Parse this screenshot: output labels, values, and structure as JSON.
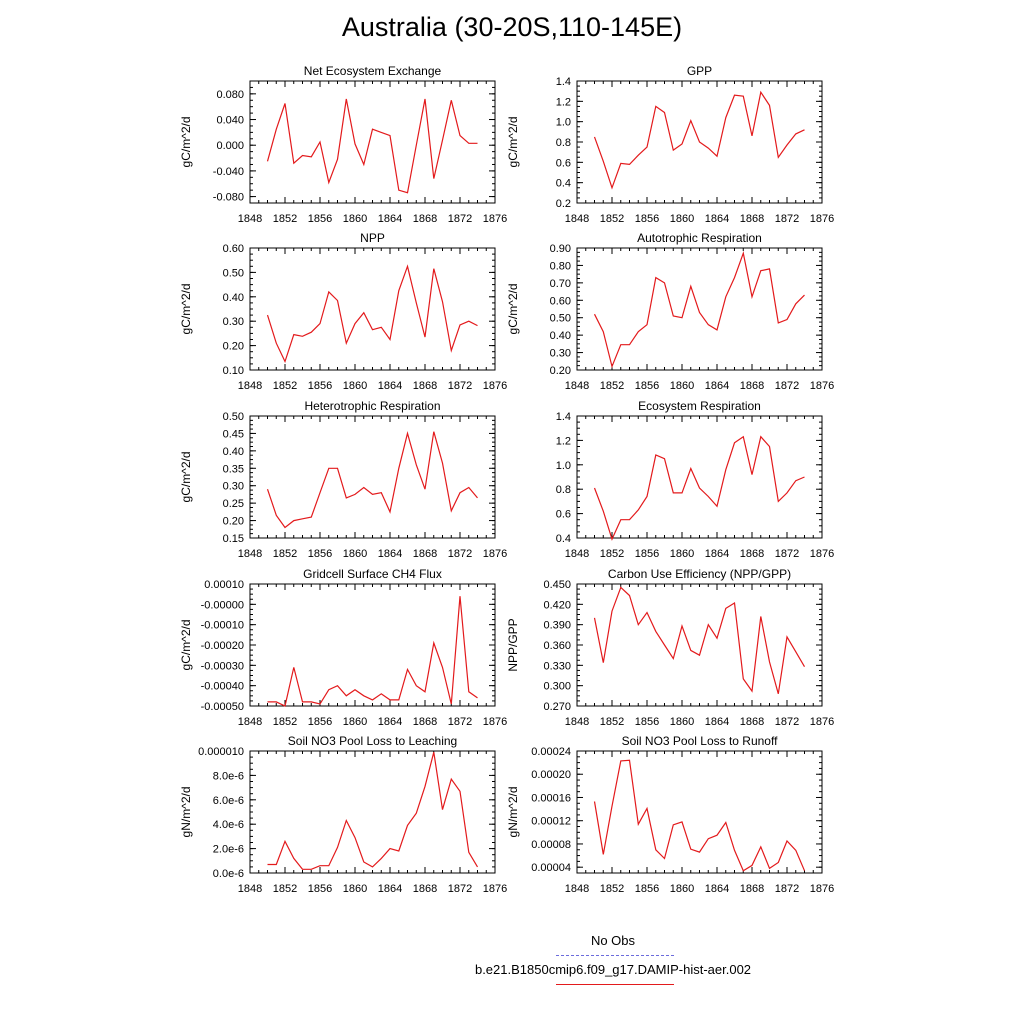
{
  "title": "Australia (30-20S,110-145E)",
  "colors": {
    "series": "#e31a1c",
    "obs": "#6b6bdc",
    "axis": "#000000"
  },
  "legend": {
    "entries": [
      {
        "label": "No Obs",
        "style": "dashed",
        "color": "#6b6bdc"
      },
      {
        "label": "b.e21.B1850cmip6.f09_g17.DAMIP-hist-aer.002",
        "style": "solid",
        "color": "#e31a1c"
      }
    ]
  },
  "chart_data": [
    {
      "type": "line",
      "title": "Net Ecosystem Exchange",
      "ylabel": "gC/m^2/d",
      "xlabel": "",
      "xlim": [
        1848,
        1876
      ],
      "ylim": [
        -0.09,
        0.1
      ],
      "xticks": [
        "1848",
        "1852",
        "1856",
        "1860",
        "1864",
        "1868",
        "1872",
        "1876"
      ],
      "yticks": [
        -0.08,
        -0.04,
        0.0,
        0.04,
        0.08
      ],
      "ytick_labels": [
        "-0.080",
        "-0.040",
        "0.000",
        "0.040",
        "0.080"
      ],
      "series": [
        {
          "x": [
            1850,
            1851,
            1852,
            1853,
            1854,
            1855,
            1856,
            1857,
            1858,
            1859,
            1860,
            1861,
            1862,
            1863,
            1864,
            1865,
            1866,
            1867,
            1868,
            1869,
            1870,
            1871,
            1872,
            1873,
            1874
          ],
          "y": [
            -0.025,
            0.025,
            0.065,
            -0.028,
            -0.016,
            -0.018,
            0.005,
            -0.058,
            -0.022,
            0.072,
            0.002,
            -0.03,
            0.025,
            0.02,
            0.015,
            -0.07,
            -0.074,
            0.0,
            0.072,
            -0.052,
            0.008,
            0.07,
            0.015,
            0.003,
            0.003
          ]
        }
      ]
    },
    {
      "type": "line",
      "title": "GPP",
      "ylabel": "gC/m^2/d",
      "xlabel": "",
      "xlim": [
        1848,
        1876
      ],
      "ylim": [
        0.2,
        1.4
      ],
      "xticks": [
        "1848",
        "1852",
        "1856",
        "1860",
        "1864",
        "1868",
        "1872",
        "1876"
      ],
      "yticks": [
        0.2,
        0.4,
        0.6,
        0.8,
        1.0,
        1.2,
        1.4
      ],
      "ytick_labels": [
        "0.2",
        "0.4",
        "0.6",
        "0.8",
        "1.0",
        "1.2",
        "1.4"
      ],
      "series": [
        {
          "x": [
            1850,
            1851,
            1852,
            1853,
            1854,
            1855,
            1856,
            1857,
            1858,
            1859,
            1860,
            1861,
            1862,
            1863,
            1864,
            1865,
            1866,
            1867,
            1868,
            1869,
            1870,
            1871,
            1872,
            1873,
            1874
          ],
          "y": [
            0.85,
            0.61,
            0.35,
            0.59,
            0.58,
            0.67,
            0.75,
            1.15,
            1.09,
            0.72,
            0.78,
            1.01,
            0.8,
            0.74,
            0.66,
            1.04,
            1.26,
            1.25,
            0.86,
            1.29,
            1.16,
            0.65,
            0.77,
            0.88,
            0.92
          ]
        }
      ]
    },
    {
      "type": "line",
      "title": "NPP",
      "ylabel": "gC/m^2/d",
      "xlabel": "",
      "xlim": [
        1848,
        1876
      ],
      "ylim": [
        0.1,
        0.6
      ],
      "xticks": [
        "1848",
        "1852",
        "1856",
        "1860",
        "1864",
        "1868",
        "1872",
        "1876"
      ],
      "yticks": [
        0.1,
        0.2,
        0.3,
        0.4,
        0.5,
        0.6
      ],
      "ytick_labels": [
        "0.10",
        "0.20",
        "0.30",
        "0.40",
        "0.50",
        "0.60"
      ],
      "series": [
        {
          "x": [
            1850,
            1851,
            1852,
            1853,
            1854,
            1855,
            1856,
            1857,
            1858,
            1859,
            1860,
            1861,
            1862,
            1863,
            1864,
            1865,
            1866,
            1867,
            1868,
            1869,
            1870,
            1871,
            1872,
            1873,
            1874
          ],
          "y": [
            0.325,
            0.21,
            0.135,
            0.245,
            0.238,
            0.255,
            0.29,
            0.42,
            0.385,
            0.21,
            0.29,
            0.335,
            0.265,
            0.275,
            0.225,
            0.425,
            0.525,
            0.375,
            0.235,
            0.515,
            0.38,
            0.18,
            0.285,
            0.3,
            0.282
          ]
        }
      ]
    },
    {
      "type": "line",
      "title": "Autotrophic Respiration",
      "ylabel": "gC/m^2/d",
      "xlabel": "",
      "xlim": [
        1848,
        1876
      ],
      "ylim": [
        0.2,
        0.9
      ],
      "xticks": [
        "1848",
        "1852",
        "1856",
        "1860",
        "1864",
        "1868",
        "1872",
        "1876"
      ],
      "yticks": [
        0.2,
        0.3,
        0.4,
        0.5,
        0.6,
        0.7,
        0.8,
        0.9
      ],
      "ytick_labels": [
        "0.20",
        "0.30",
        "0.40",
        "0.50",
        "0.60",
        "0.70",
        "0.80",
        "0.90"
      ],
      "series": [
        {
          "x": [
            1850,
            1851,
            1852,
            1853,
            1854,
            1855,
            1856,
            1857,
            1858,
            1859,
            1860,
            1861,
            1862,
            1863,
            1864,
            1865,
            1866,
            1867,
            1868,
            1869,
            1870,
            1871,
            1872,
            1873,
            1874
          ],
          "y": [
            0.52,
            0.42,
            0.22,
            0.345,
            0.345,
            0.42,
            0.46,
            0.73,
            0.7,
            0.51,
            0.5,
            0.68,
            0.53,
            0.46,
            0.43,
            0.62,
            0.73,
            0.87,
            0.62,
            0.77,
            0.78,
            0.47,
            0.49,
            0.58,
            0.63
          ]
        }
      ]
    },
    {
      "type": "line",
      "title": "Heterotrophic Respiration",
      "ylabel": "gC/m^2/d",
      "xlabel": "",
      "xlim": [
        1848,
        1876
      ],
      "ylim": [
        0.15,
        0.5
      ],
      "xticks": [
        "1848",
        "1852",
        "1856",
        "1860",
        "1864",
        "1868",
        "1872",
        "1876"
      ],
      "yticks": [
        0.15,
        0.2,
        0.25,
        0.3,
        0.35,
        0.4,
        0.45,
        0.5
      ],
      "ytick_labels": [
        "0.15",
        "0.20",
        "0.25",
        "0.30",
        "0.35",
        "0.40",
        "0.45",
        "0.50"
      ],
      "series": [
        {
          "x": [
            1850,
            1851,
            1852,
            1853,
            1854,
            1855,
            1856,
            1857,
            1858,
            1859,
            1860,
            1861,
            1862,
            1863,
            1864,
            1865,
            1866,
            1867,
            1868,
            1869,
            1870,
            1871,
            1872,
            1873,
            1874
          ],
          "y": [
            0.29,
            0.215,
            0.18,
            0.2,
            0.205,
            0.21,
            0.28,
            0.35,
            0.35,
            0.265,
            0.275,
            0.295,
            0.275,
            0.28,
            0.225,
            0.35,
            0.45,
            0.36,
            0.29,
            0.455,
            0.365,
            0.228,
            0.28,
            0.295,
            0.265
          ]
        }
      ]
    },
    {
      "type": "line",
      "title": "Ecosystem Respiration",
      "ylabel": "",
      "xlabel": "",
      "xlim": [
        1848,
        1876
      ],
      "ylim": [
        0.4,
        1.4
      ],
      "xticks": [
        "1848",
        "1852",
        "1856",
        "1860",
        "1864",
        "1868",
        "1872",
        "1876"
      ],
      "yticks": [
        0.4,
        0.6,
        0.8,
        1.0,
        1.2,
        1.4
      ],
      "ytick_labels": [
        "0.4",
        "0.6",
        "0.8",
        "1.0",
        "1.2",
        "1.4"
      ],
      "series": [
        {
          "x": [
            1850,
            1851,
            1852,
            1853,
            1854,
            1855,
            1856,
            1857,
            1858,
            1859,
            1860,
            1861,
            1862,
            1863,
            1864,
            1865,
            1866,
            1867,
            1868,
            1869,
            1870,
            1871,
            1872,
            1873,
            1874
          ],
          "y": [
            0.81,
            0.62,
            0.39,
            0.55,
            0.55,
            0.63,
            0.74,
            1.08,
            1.05,
            0.77,
            0.77,
            0.97,
            0.81,
            0.74,
            0.66,
            0.96,
            1.18,
            1.23,
            0.92,
            1.23,
            1.15,
            0.7,
            0.77,
            0.87,
            0.9
          ]
        }
      ]
    },
    {
      "type": "line",
      "title": "Gridcell Surface CH4 Flux",
      "ylabel": "gC/m^2/d",
      "xlabel": "",
      "xlim": [
        1848,
        1876
      ],
      "ylim": [
        -0.0005,
        0.0001
      ],
      "xticks": [
        "1848",
        "1852",
        "1856",
        "1860",
        "1864",
        "1868",
        "1872",
        "1876"
      ],
      "yticks": [
        -0.0005,
        -0.0004,
        -0.0003,
        -0.0002,
        -0.0001,
        0.0,
        0.0001
      ],
      "ytick_labels": [
        "-0.00050",
        "-0.00040",
        "-0.00030",
        "-0.00020",
        "-0.00010",
        "-0.00000",
        "0.00010"
      ],
      "series": [
        {
          "x": [
            1850,
            1851,
            1852,
            1853,
            1854,
            1855,
            1856,
            1857,
            1858,
            1859,
            1860,
            1861,
            1862,
            1863,
            1864,
            1865,
            1866,
            1867,
            1868,
            1869,
            1870,
            1871,
            1872,
            1873,
            1874
          ],
          "y": [
            -0.00048,
            -0.00048,
            -0.0005,
            -0.00031,
            -0.00048,
            -0.00048,
            -0.00049,
            -0.00042,
            -0.0004,
            -0.00045,
            -0.00042,
            -0.00045,
            -0.00047,
            -0.00044,
            -0.00047,
            -0.00047,
            -0.00032,
            -0.0004,
            -0.00043,
            -0.00019,
            -0.00031,
            -0.00049,
            4e-05,
            -0.00043,
            -0.00046
          ]
        }
      ]
    },
    {
      "type": "line",
      "title": "Carbon Use Efficiency (NPP/GPP)",
      "ylabel": "NPP/GPP",
      "xlabel": "",
      "xlim": [
        1848,
        1876
      ],
      "ylim": [
        0.27,
        0.45
      ],
      "xticks": [
        "1848",
        "1852",
        "1856",
        "1860",
        "1864",
        "1868",
        "1872",
        "1876"
      ],
      "yticks": [
        0.27,
        0.3,
        0.33,
        0.36,
        0.39,
        0.42,
        0.45
      ],
      "ytick_labels": [
        "0.270",
        "0.300",
        "0.330",
        "0.360",
        "0.390",
        "0.420",
        "0.450"
      ],
      "series": [
        {
          "x": [
            1850,
            1851,
            1852,
            1853,
            1854,
            1855,
            1856,
            1857,
            1858,
            1859,
            1860,
            1861,
            1862,
            1863,
            1864,
            1865,
            1866,
            1867,
            1868,
            1869,
            1870,
            1871,
            1872,
            1873,
            1874
          ],
          "y": [
            0.4,
            0.334,
            0.41,
            0.445,
            0.433,
            0.39,
            0.408,
            0.38,
            0.36,
            0.34,
            0.388,
            0.352,
            0.345,
            0.39,
            0.37,
            0.414,
            0.422,
            0.31,
            0.292,
            0.402,
            0.335,
            0.288,
            0.372,
            0.35,
            0.328
          ]
        }
      ]
    },
    {
      "type": "line",
      "title": "Soil NO3 Pool Loss to Leaching",
      "ylabel": "gN/m^2/d",
      "xlabel": "",
      "xlim": [
        1848,
        1876
      ],
      "ylim": [
        0.0,
        1e-05
      ],
      "xticks": [
        "1848",
        "1852",
        "1856",
        "1860",
        "1864",
        "1868",
        "1872",
        "1876"
      ],
      "yticks": [
        0.0,
        2e-06,
        4e-06,
        6e-06,
        8e-06,
        1e-05
      ],
      "ytick_labels": [
        "0.0e-6",
        "2.0e-6",
        "4.0e-6",
        "6.0e-6",
        "8.0e-6",
        "0.000010"
      ],
      "series": [
        {
          "x": [
            1850,
            1851,
            1852,
            1853,
            1854,
            1855,
            1856,
            1857,
            1858,
            1859,
            1860,
            1861,
            1862,
            1863,
            1864,
            1865,
            1866,
            1867,
            1868,
            1869,
            1870,
            1871,
            1872,
            1873,
            1874
          ],
          "y": [
            7e-07,
            7e-07,
            2.6e-06,
            1.2e-06,
            3e-07,
            3e-07,
            6e-07,
            6e-07,
            2.1e-06,
            4.3e-06,
            2.9e-06,
            9e-07,
            5e-07,
            1.2e-06,
            2e-06,
            1.8e-06,
            3.9e-06,
            4.9e-06,
            7.1e-06,
            9.9e-06,
            5.2e-06,
            7.7e-06,
            6.7e-06,
            1.7e-06,
            5e-07
          ]
        }
      ]
    },
    {
      "type": "line",
      "title": "Soil NO3 Pool Loss to Runoff",
      "ylabel": "gN/m^2/d",
      "xlabel": "",
      "xlim": [
        1848,
        1876
      ],
      "ylim": [
        3e-05,
        0.00024
      ],
      "xticks": [
        "1848",
        "1852",
        "1856",
        "1860",
        "1864",
        "1868",
        "1872",
        "1876"
      ],
      "yticks": [
        4e-05,
        8e-05,
        0.00012,
        0.00016,
        0.0002,
        0.00024
      ],
      "ytick_labels": [
        "0.00004",
        "0.00008",
        "0.00012",
        "0.00016",
        "0.00020",
        "0.00024"
      ],
      "series": [
        {
          "x": [
            1850,
            1851,
            1852,
            1853,
            1854,
            1855,
            1856,
            1857,
            1858,
            1859,
            1860,
            1861,
            1862,
            1863,
            1864,
            1865,
            1866,
            1867,
            1868,
            1869,
            1870,
            1871,
            1872,
            1873,
            1874
          ],
          "y": [
            0.000153,
            6.2e-05,
            0.000145,
            0.000223,
            0.000224,
            0.000114,
            0.000141,
            7e-05,
            5.5e-05,
            0.000113,
            0.000118,
            7.1e-05,
            6.6e-05,
            8.9e-05,
            9.5e-05,
            0.000117,
            6.9e-05,
            3.4e-05,
            4.3e-05,
            7.5e-05,
            3.8e-05,
            4.8e-05,
            8.5e-05,
            6.9e-05,
            3.4e-05
          ]
        }
      ]
    }
  ]
}
